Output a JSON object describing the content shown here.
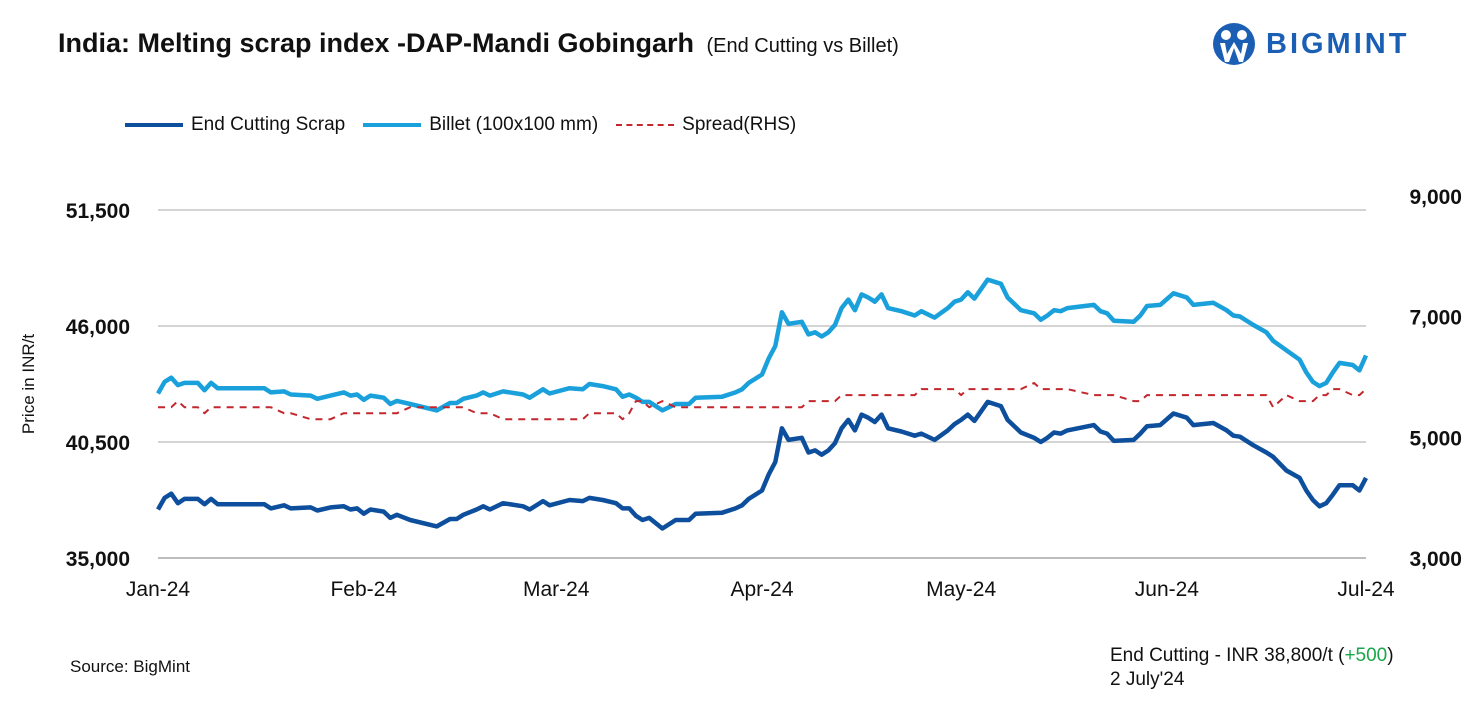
{
  "header": {
    "title": "India: Melting scrap index -DAP-Mandi Gobingarh",
    "subtitle": "(End Cutting vs Billet)",
    "logo_text": "BIGMINT"
  },
  "footer": {
    "source": "Source: BigMint",
    "note_prefix": "End Cutting - INR 38,800/t (",
    "note_change": "+500",
    "note_suffix": ")",
    "note_date": "2 July'24"
  },
  "colors": {
    "end_cutting": "#0d4f9c",
    "billet": "#1aa0db",
    "spread": "#c3272d",
    "grid": "#d4d4d4",
    "positive": "#1aa64a"
  },
  "chart_data": {
    "type": "line",
    "title": "India: Melting scrap index -DAP-Mandi Gobingarh (End Cutting vs Billet)",
    "ylabel": "Price in INR/t",
    "y2label": "Spread(RHS)",
    "ylim": [
      35000,
      51500
    ],
    "y2lim": [
      3000,
      9000
    ],
    "yticks": [
      "35,000",
      "40,500",
      "46,000",
      "51,500"
    ],
    "ytick_values": [
      35000,
      40500,
      46000,
      51500
    ],
    "y2ticks": [
      "3,000",
      "5,000",
      "7,000",
      "9,000"
    ],
    "y2tick_values": [
      3000,
      5000,
      7000,
      9000
    ],
    "xlim_days": [
      0,
      182
    ],
    "xticks": [
      "Jan-24",
      "Feb-24",
      "Mar-24",
      "Apr-24",
      "May-24",
      "Jun-24",
      "Jul-24"
    ],
    "xtick_days": [
      0,
      31,
      60,
      91,
      121,
      152,
      182
    ],
    "grid": true,
    "legend_position": "top-left",
    "x_days": [
      0,
      1,
      2,
      3,
      4,
      6,
      7,
      8,
      9,
      16,
      17,
      19,
      20,
      23,
      24,
      26,
      28,
      29,
      30,
      31,
      32,
      34,
      35,
      36,
      38,
      42,
      44,
      45,
      46,
      48,
      49,
      50,
      52,
      55,
      56,
      58,
      59,
      62,
      64,
      65,
      67,
      69,
      70,
      71,
      72,
      73,
      74,
      76,
      78,
      80,
      81,
      85,
      87,
      88,
      89,
      91,
      92,
      93,
      94,
      95,
      97,
      98,
      99,
      100,
      101,
      102,
      103,
      104,
      105,
      106,
      107,
      108,
      109,
      110,
      112,
      114,
      115,
      117,
      119,
      120,
      121,
      122,
      123,
      125,
      127,
      128,
      130,
      132,
      133,
      134,
      135,
      136,
      137,
      141,
      142,
      143,
      144,
      147,
      148,
      149,
      151,
      153,
      155,
      156,
      159,
      161,
      162,
      163,
      165,
      167,
      168,
      170,
      172,
      173,
      174,
      175,
      176,
      177,
      178,
      180,
      181,
      182
    ],
    "series": [
      {
        "name": "End Cutting Scrap",
        "axis": "left",
        "values": [
          37300,
          37850,
          38050,
          37600,
          37800,
          37800,
          37550,
          37800,
          37550,
          37550,
          37350,
          37500,
          37350,
          37400,
          37250,
          37400,
          37450,
          37300,
          37350,
          37100,
          37300,
          37200,
          36900,
          37050,
          36800,
          36500,
          36850,
          36850,
          37050,
          37300,
          37450,
          37300,
          37600,
          37450,
          37300,
          37700,
          37500,
          37750,
          37700,
          37850,
          37750,
          37600,
          37350,
          37350,
          37000,
          36800,
          36900,
          36400,
          36800,
          36800,
          37100,
          37150,
          37350,
          37500,
          37800,
          38200,
          38950,
          39550,
          41150,
          40600,
          40700,
          40000,
          40100,
          39900,
          40100,
          40450,
          41150,
          41550,
          41050,
          41800,
          41650,
          41450,
          41800,
          41150,
          41000,
          40800,
          40900,
          40600,
          41050,
          41350,
          41550,
          41800,
          41500,
          42400,
          42200,
          41550,
          40950,
          40700,
          40500,
          40700,
          40950,
          40900,
          41050,
          41300,
          41000,
          40900,
          40550,
          40600,
          40900,
          41250,
          41300,
          41850,
          41650,
          41300,
          41400,
          41050,
          40800,
          40750,
          40350,
          40000,
          39800,
          39150,
          38800,
          38200,
          37750,
          37450,
          37600,
          38000,
          38450,
          38450,
          38200,
          38800
        ]
      },
      {
        "name": "Billet (100x100 mm)",
        "axis": "left",
        "values": [
          42800,
          43350,
          43550,
          43200,
          43300,
          43300,
          42950,
          43300,
          43050,
          43050,
          42850,
          42900,
          42750,
          42700,
          42550,
          42700,
          42850,
          42700,
          42750,
          42500,
          42700,
          42600,
          42300,
          42450,
          42300,
          42000,
          42350,
          42350,
          42550,
          42700,
          42850,
          42700,
          42900,
          42750,
          42600,
          43000,
          42800,
          43050,
          43000,
          43250,
          43150,
          43000,
          42650,
          42750,
          42600,
          42400,
          42400,
          42000,
          42300,
          42300,
          42600,
          42650,
          42850,
          43000,
          43300,
          43700,
          44450,
          45050,
          46650,
          46100,
          46200,
          45600,
          45700,
          45500,
          45700,
          46050,
          46850,
          47250,
          46750,
          47500,
          47350,
          47150,
          47500,
          46850,
          46700,
          46500,
          46700,
          46400,
          46850,
          47150,
          47250,
          47600,
          47300,
          48200,
          48000,
          47350,
          46750,
          46600,
          46300,
          46500,
          46750,
          46700,
          46850,
          47000,
          46700,
          46600,
          46250,
          46200,
          46500,
          46950,
          47000,
          47550,
          47350,
          47000,
          47100,
          46750,
          46500,
          46450,
          46050,
          45700,
          45300,
          44850,
          44400,
          43800,
          43350,
          43150,
          43300,
          43800,
          44250,
          44150,
          43900,
          44600
        ]
      },
      {
        "name": "Spread(RHS)",
        "axis": "right",
        "values": [
          5500,
          5500,
          5500,
          5600,
          5500,
          5500,
          5400,
          5500,
          5500,
          5500,
          5500,
          5400,
          5400,
          5300,
          5300,
          5300,
          5400,
          5400,
          5400,
          5400,
          5400,
          5400,
          5400,
          5400,
          5500,
          5500,
          5500,
          5500,
          5500,
          5400,
          5400,
          5400,
          5300,
          5300,
          5300,
          5300,
          5300,
          5300,
          5300,
          5400,
          5400,
          5400,
          5300,
          5400,
          5600,
          5600,
          5500,
          5600,
          5500,
          5500,
          5500,
          5500,
          5500,
          5500,
          5500,
          5500,
          5500,
          5500,
          5500,
          5500,
          5500,
          5600,
          5600,
          5600,
          5600,
          5600,
          5700,
          5700,
          5700,
          5700,
          5700,
          5700,
          5700,
          5700,
          5700,
          5700,
          5800,
          5800,
          5800,
          5800,
          5700,
          5800,
          5800,
          5800,
          5800,
          5800,
          5800,
          5900,
          5800,
          5800,
          5800,
          5800,
          5800,
          5700,
          5700,
          5700,
          5700,
          5600,
          5600,
          5700,
          5700,
          5700,
          5700,
          5700,
          5700,
          5700,
          5700,
          5700,
          5700,
          5700,
          5500,
          5700,
          5600,
          5600,
          5600,
          5700,
          5700,
          5800,
          5800,
          5700,
          5700,
          5800
        ]
      }
    ]
  }
}
